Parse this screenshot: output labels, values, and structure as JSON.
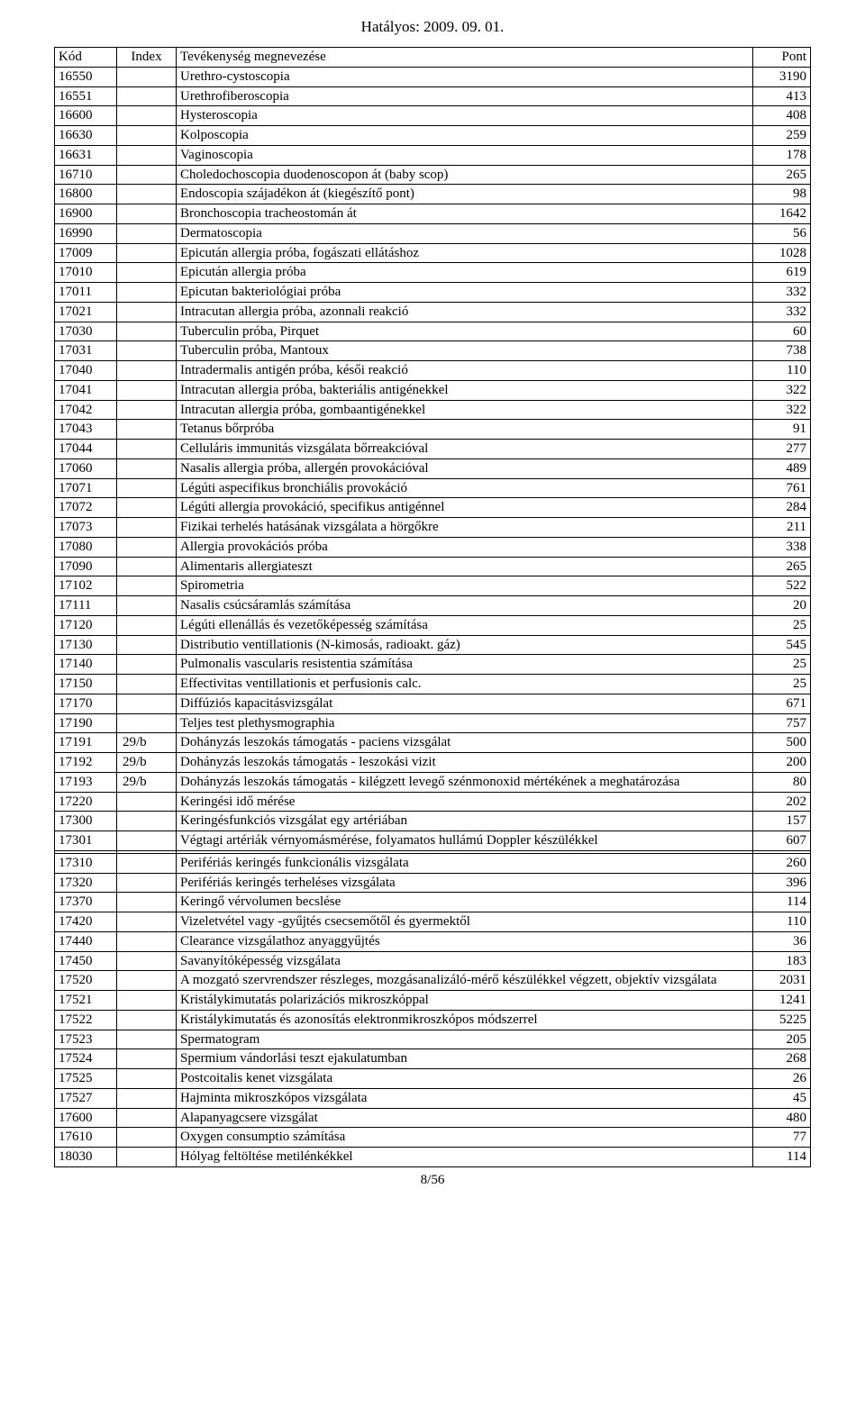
{
  "header_date": "Hatályos: 2009. 09. 01.",
  "footer": "8/56",
  "columns": {
    "kod": "Kód",
    "index": "Index",
    "name": "Tevékenység megnevezése",
    "pont": "Pont"
  },
  "rows": [
    {
      "kod": "16550",
      "index": "",
      "name": "Urethro-cystoscopia",
      "pont": "3190"
    },
    {
      "kod": "16551",
      "index": "",
      "name": "Urethrofiberoscopia",
      "pont": "413"
    },
    {
      "kod": "16600",
      "index": "",
      "name": "Hysteroscopia",
      "pont": "408"
    },
    {
      "kod": "16630",
      "index": "",
      "name": "Kolposcopia",
      "pont": "259"
    },
    {
      "kod": "16631",
      "index": "",
      "name": "Vaginoscopia",
      "pont": "178"
    },
    {
      "kod": "16710",
      "index": "",
      "name": "Choledochoscopia duodenoscopon át (baby scop)",
      "pont": "265"
    },
    {
      "kod": "16800",
      "index": "",
      "name": "Endoscopia szájadékon át (kiegészítő pont)",
      "pont": "98"
    },
    {
      "kod": "16900",
      "index": "",
      "name": "Bronchoscopia tracheostomán át",
      "pont": "1642"
    },
    {
      "kod": "16990",
      "index": "",
      "name": "Dermatoscopia",
      "pont": "56"
    },
    {
      "kod": "17009",
      "index": "",
      "name": "Epicután allergia próba, fogászati ellátáshoz",
      "pont": "1028"
    },
    {
      "kod": "17010",
      "index": "",
      "name": "Epicután allergia próba",
      "pont": "619"
    },
    {
      "kod": "17011",
      "index": "",
      "name": "Epicutan bakteriológiai próba",
      "pont": "332"
    },
    {
      "kod": "17021",
      "index": "",
      "name": "Intracutan allergia próba, azonnali reakció",
      "pont": "332"
    },
    {
      "kod": "17030",
      "index": "",
      "name": "Tuberculin próba, Pirquet",
      "pont": "60"
    },
    {
      "kod": "17031",
      "index": "",
      "name": "Tuberculin próba, Mantoux",
      "pont": "738"
    },
    {
      "kod": "17040",
      "index": "",
      "name": "Intradermalis antigén próba, késői reakció",
      "pont": "110"
    },
    {
      "kod": "17041",
      "index": "",
      "name": "Intracutan allergia próba, bakteriális antigénekkel",
      "pont": "322"
    },
    {
      "kod": "17042",
      "index": "",
      "name": "Intracutan allergia próba, gombaantigénekkel",
      "pont": "322"
    },
    {
      "kod": "17043",
      "index": "",
      "name": "Tetanus bőrpróba",
      "pont": "91"
    },
    {
      "kod": "17044",
      "index": "",
      "name": "Celluláris immunitás vizsgálata bőrreakcióval",
      "pont": "277"
    },
    {
      "kod": "17060",
      "index": "",
      "name": "Nasalis allergia próba, allergén provokációval",
      "pont": "489"
    },
    {
      "kod": "17071",
      "index": "",
      "name": "Légúti aspecifikus bronchiális provokáció",
      "pont": "761"
    },
    {
      "kod": "17072",
      "index": "",
      "name": "Légúti allergia provokáció, specifikus antigénnel",
      "pont": "284"
    },
    {
      "kod": "17073",
      "index": "",
      "name": "Fizikai terhelés hatásának vizsgálata a hörgőkre",
      "pont": "211"
    },
    {
      "kod": "17080",
      "index": "",
      "name": "Allergia provokációs próba",
      "pont": "338"
    },
    {
      "kod": "17090",
      "index": "",
      "name": "Alimentaris allergiateszt",
      "pont": "265"
    },
    {
      "kod": "17102",
      "index": "",
      "name": "Spirometria",
      "pont": "522"
    },
    {
      "kod": "17111",
      "index": "",
      "name": "Nasalis csúcsáramlás számítása",
      "pont": "20"
    },
    {
      "kod": "17120",
      "index": "",
      "name": "Légúti ellenállás és vezetőképesség számítása",
      "pont": "25"
    },
    {
      "kod": "17130",
      "index": "",
      "name": "Distributio ventillationis (N-kimosás, radioakt. gáz)",
      "pont": "545"
    },
    {
      "kod": "17140",
      "index": "",
      "name": "Pulmonalis vascularis resistentia számítása",
      "pont": "25"
    },
    {
      "kod": "17150",
      "index": "",
      "name": "Effectivitas ventillationis et perfusionis calc.",
      "pont": "25"
    },
    {
      "kod": "17170",
      "index": "",
      "name": "Diffúziós kapacitásvizsgálat",
      "pont": "671"
    },
    {
      "kod": "17190",
      "index": "",
      "name": "Teljes test plethysmographia",
      "pont": "757"
    },
    {
      "kod": "17191",
      "index": "29/b",
      "name": "Dohányzás leszokás támogatás - paciens vizsgálat",
      "pont": "500"
    },
    {
      "kod": "17192",
      "index": "29/b",
      "name": "Dohányzás leszokás támogatás - leszokási vizit",
      "pont": "200"
    },
    {
      "kod": "17193",
      "index": "29/b",
      "name": "Dohányzás leszokás támogatás - kilégzett levegő szénmonoxid mértékének a meghatározása",
      "pont": "80"
    },
    {
      "kod": "17220",
      "index": "",
      "name": "Keringési idő mérése",
      "pont": "202"
    },
    {
      "kod": "17300",
      "index": "",
      "name": "Keringésfunkciós vizsgálat egy artériában",
      "pont": "157"
    },
    {
      "kod": "17301",
      "index": "",
      "name": "Végtagi artériák vérnyomásmérése, folyamatos hullámú Doppler készülékkel",
      "pont": "607"
    },
    {
      "kod": "",
      "index": "",
      "name": "",
      "pont": ""
    },
    {
      "kod": "17310",
      "index": "",
      "name": "Perifériás keringés funkcionális vizsgálata",
      "pont": "260"
    },
    {
      "kod": "17320",
      "index": "",
      "name": "Perifériás keringés terheléses vizsgálata",
      "pont": "396"
    },
    {
      "kod": "17370",
      "index": "",
      "name": "Keringő vérvolumen becslése",
      "pont": "114"
    },
    {
      "kod": "17420",
      "index": "",
      "name": "Vizeletvétel vagy -gyűjtés csecsemőtől és gyermektől",
      "pont": "110"
    },
    {
      "kod": "17440",
      "index": "",
      "name": "Clearance vizsgálathoz anyaggyűjtés",
      "pont": "36"
    },
    {
      "kod": "17450",
      "index": "",
      "name": "Savanyítóképesség vizsgálata",
      "pont": "183"
    },
    {
      "kod": "17520",
      "index": "",
      "name": "A mozgató szervrendszer részleges, mozgásanalizáló-mérő készülékkel végzett, objektív vizsgálata",
      "pont": "2031"
    },
    {
      "kod": "17521",
      "index": "",
      "name": "Kristálykimutatás polarizációs mikroszkóppal",
      "pont": "1241"
    },
    {
      "kod": "17522",
      "index": "",
      "name": "Kristálykimutatás és azonosítás elektronmikroszkópos módszerrel",
      "pont": "5225"
    },
    {
      "kod": "17523",
      "index": "",
      "name": "Spermatogram",
      "pont": "205"
    },
    {
      "kod": "17524",
      "index": "",
      "name": "Spermium vándorlási teszt ejakulatumban",
      "pont": "268"
    },
    {
      "kod": "17525",
      "index": "",
      "name": "Postcoitalis kenet vizsgálata",
      "pont": "26"
    },
    {
      "kod": "17527",
      "index": "",
      "name": "Hajminta mikroszkópos vizsgálata",
      "pont": "45"
    },
    {
      "kod": "17600",
      "index": "",
      "name": "Alapanyagcsere vizsgálat",
      "pont": "480"
    },
    {
      "kod": "17610",
      "index": "",
      "name": "Oxygen consumptio számítása",
      "pont": "77"
    },
    {
      "kod": "18030",
      "index": "",
      "name": "Hólyag feltöltése metilénkékkel",
      "pont": "114"
    }
  ]
}
